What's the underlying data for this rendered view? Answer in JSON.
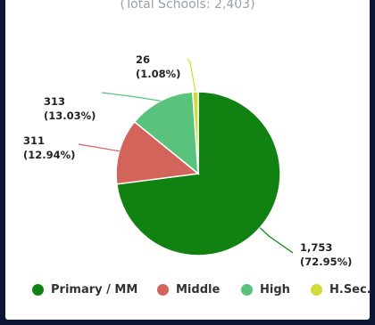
{
  "chart_data": {
    "type": "pie",
    "subtitle": "(Total Schools: 2,403)",
    "slices": [
      {
        "name": "Primary / MM",
        "value": 1753,
        "label_count": "1,753",
        "label_pct": "(72.95%)",
        "color": "#118111"
      },
      {
        "name": "Middle",
        "value": 311,
        "label_count": "311",
        "label_pct": "(12.94%)",
        "color": "#d2645c"
      },
      {
        "name": "High",
        "value": 313,
        "label_count": "313",
        "label_pct": "(13.03%)",
        "color": "#59c27c"
      },
      {
        "name": "H.Sec.",
        "value": 26,
        "label_count": "26",
        "label_pct": "(1.08%)",
        "color": "#cfdc3a"
      }
    ],
    "legend_placement": "bottom"
  }
}
